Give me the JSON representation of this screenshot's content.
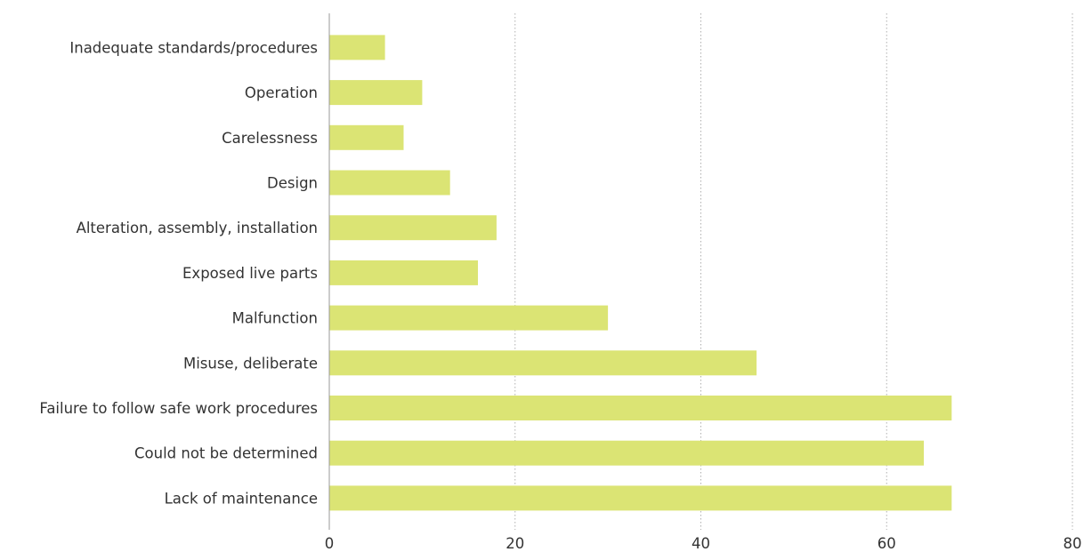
{
  "chart_data": {
    "type": "bar",
    "orientation": "horizontal",
    "categories": [
      "Inadequate standards/procedures",
      "Operation",
      "Carelessness",
      "Design",
      "Alteration, assembly, installation",
      "Exposed live parts",
      "Malfunction",
      "Misuse, deliberate",
      "Failure to follow safe work procedures",
      "Could not be determined",
      "Lack of maintenance"
    ],
    "values": [
      6,
      10,
      8,
      13,
      18,
      16,
      30,
      46,
      67,
      64,
      67
    ],
    "xlim": [
      0,
      80
    ],
    "xticks": [
      "0",
      "20",
      "40",
      "60",
      "80"
    ],
    "title": "",
    "xlabel": "",
    "ylabel": "",
    "grid": "vertical dotted",
    "bar_color": "#dbe474"
  }
}
